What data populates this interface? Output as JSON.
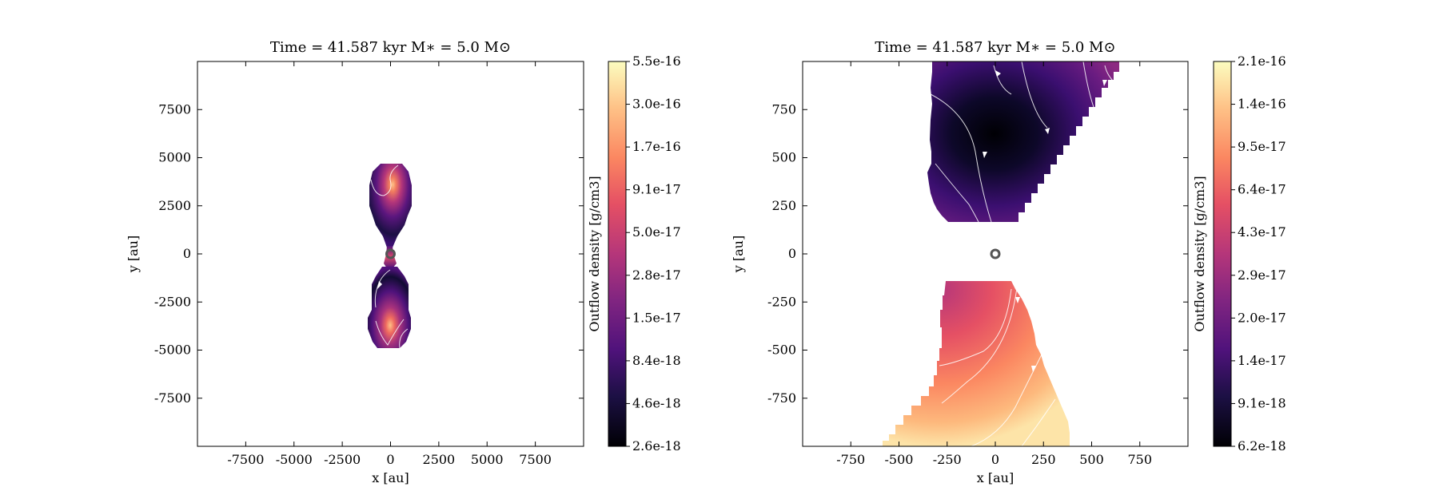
{
  "chart_data": [
    {
      "type": "heatmap",
      "title": "Time = 41.587 kyr    M∗ = 5.0 M⊙",
      "xlabel": "x [au]",
      "ylabel": "y [au]",
      "xlim": [
        -10000,
        10000
      ],
      "ylim": [
        -10000,
        10000
      ],
      "xticks": [
        -7500,
        -5000,
        -2500,
        0,
        2500,
        5000,
        7500
      ],
      "yticks": [
        -7500,
        -5000,
        -2500,
        0,
        2500,
        5000,
        7500
      ],
      "colorbar": {
        "label": "Outflow density [g/cm3]",
        "colormap": "magma",
        "scale": "log",
        "ticks": [
          "2.6e-18",
          "4.6e-18",
          "8.4e-18",
          "1.5e-17",
          "2.8e-17",
          "5.0e-17",
          "9.1e-17",
          "1.7e-16",
          "3.0e-16",
          "5.5e-16"
        ]
      },
      "star_position": [
        0,
        0
      ],
      "streamlines": true
    },
    {
      "type": "heatmap",
      "title": "Time = 41.587 kyr    M∗ = 5.0 M⊙",
      "xlabel": "x [au]",
      "ylabel": "y [au]",
      "xlim": [
        -1000,
        1000
      ],
      "ylim": [
        -1000,
        1000
      ],
      "xticks": [
        -750,
        -500,
        -250,
        0,
        250,
        500,
        750
      ],
      "yticks": [
        -750,
        -500,
        -250,
        0,
        250,
        500,
        750
      ],
      "colorbar": {
        "label": "Outflow density [g/cm3]",
        "colormap": "magma",
        "scale": "log",
        "ticks": [
          "6.2e-18",
          "9.1e-18",
          "1.4e-17",
          "2.0e-17",
          "2.9e-17",
          "4.3e-17",
          "6.4e-17",
          "9.5e-17",
          "1.4e-16",
          "2.1e-16"
        ]
      },
      "star_position": [
        0,
        0
      ],
      "streamlines": true
    }
  ]
}
